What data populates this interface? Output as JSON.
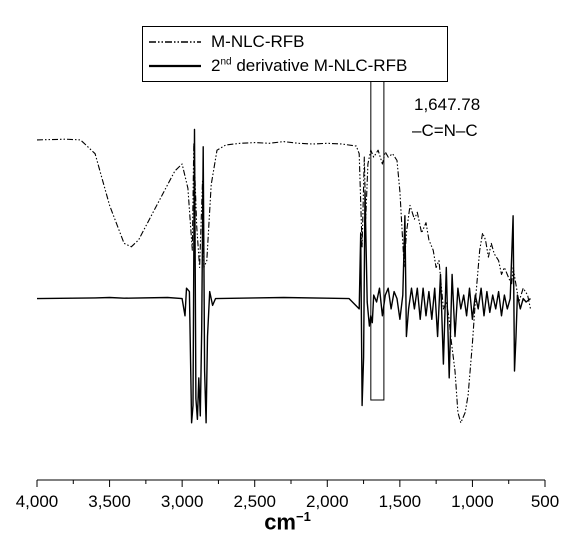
{
  "chart_data": {
    "type": "line",
    "x_reversed": true,
    "xlim": [
      4000,
      500
    ],
    "xticks": [
      4000,
      3500,
      3000,
      2500,
      2000,
      1500,
      1000,
      500
    ],
    "tick_labels": [
      "4,000",
      "3,500",
      "3,000",
      "2,500",
      "2,000",
      "1,500",
      "1,000",
      "500"
    ],
    "xlabel_base": "cm",
    "xlabel_sup": "−1",
    "y_axis_shown": false,
    "legend_position": "top-center",
    "series": [
      {
        "name": "M-NLC-RFB",
        "style": "dash-dot-dot",
        "points": [
          [
            4000,
            0.87
          ],
          [
            3800,
            0.872
          ],
          [
            3700,
            0.87
          ],
          [
            3600,
            0.83
          ],
          [
            3500,
            0.68
          ],
          [
            3400,
            0.57
          ],
          [
            3350,
            0.56
          ],
          [
            3300,
            0.58
          ],
          [
            3200,
            0.66
          ],
          [
            3100,
            0.74
          ],
          [
            3050,
            0.78
          ],
          [
            3000,
            0.8
          ],
          [
            2960,
            0.73
          ],
          [
            2930,
            0.55
          ],
          [
            2920,
            0.86
          ],
          [
            2900,
            0.62
          ],
          [
            2880,
            0.5
          ],
          [
            2860,
            0.75
          ],
          [
            2850,
            0.5
          ],
          [
            2830,
            0.52
          ],
          [
            2800,
            0.74
          ],
          [
            2760,
            0.84
          ],
          [
            2700,
            0.855
          ],
          [
            2600,
            0.86
          ],
          [
            2500,
            0.862
          ],
          [
            2400,
            0.86
          ],
          [
            2300,
            0.865
          ],
          [
            2200,
            0.86
          ],
          [
            2100,
            0.858
          ],
          [
            2000,
            0.86
          ],
          [
            1900,
            0.858
          ],
          [
            1800,
            0.852
          ],
          [
            1780,
            0.83
          ],
          [
            1760,
            0.56
          ],
          [
            1745,
            0.82
          ],
          [
            1735,
            0.64
          ],
          [
            1720,
            0.8
          ],
          [
            1700,
            0.84
          ],
          [
            1680,
            0.82
          ],
          [
            1650,
            0.84
          ],
          [
            1620,
            0.8
          ],
          [
            1600,
            0.835
          ],
          [
            1580,
            0.82
          ],
          [
            1550,
            0.83
          ],
          [
            1520,
            0.81
          ],
          [
            1500,
            0.72
          ],
          [
            1470,
            0.5
          ],
          [
            1455,
            0.6
          ],
          [
            1430,
            0.68
          ],
          [
            1400,
            0.64
          ],
          [
            1380,
            0.66
          ],
          [
            1350,
            0.6
          ],
          [
            1320,
            0.63
          ],
          [
            1300,
            0.58
          ],
          [
            1270,
            0.55
          ],
          [
            1250,
            0.5
          ],
          [
            1230,
            0.52
          ],
          [
            1200,
            0.38
          ],
          [
            1180,
            0.4
          ],
          [
            1160,
            0.35
          ],
          [
            1150,
            0.3
          ],
          [
            1120,
            0.2
          ],
          [
            1100,
            0.08
          ],
          [
            1080,
            0.05
          ],
          [
            1070,
            0.06
          ],
          [
            1050,
            0.08
          ],
          [
            1030,
            0.13
          ],
          [
            1000,
            0.28
          ],
          [
            980,
            0.4
          ],
          [
            950,
            0.55
          ],
          [
            930,
            0.6
          ],
          [
            910,
            0.58
          ],
          [
            890,
            0.53
          ],
          [
            870,
            0.57
          ],
          [
            850,
            0.54
          ],
          [
            820,
            0.52
          ],
          [
            800,
            0.48
          ],
          [
            780,
            0.5
          ],
          [
            750,
            0.47
          ],
          [
            730,
            0.45
          ],
          [
            720,
            0.5
          ],
          [
            700,
            0.45
          ],
          [
            680,
            0.4
          ],
          [
            650,
            0.44
          ],
          [
            620,
            0.42
          ],
          [
            600,
            0.38
          ]
        ]
      },
      {
        "name": "2nd derivative M-NLC-RFB",
        "legend_base": "2",
        "legend_sup": "nd",
        "legend_rest": " derivative M-NLC-RFB",
        "style": "solid",
        "points": [
          [
            4000,
            0.41
          ],
          [
            3600,
            0.412
          ],
          [
            3500,
            0.413
          ],
          [
            3400,
            0.411
          ],
          [
            3100,
            0.413
          ],
          [
            3000,
            0.41
          ],
          [
            2980,
            0.36
          ],
          [
            2970,
            0.44
          ],
          [
            2950,
            0.43
          ],
          [
            2935,
            0.05
          ],
          [
            2925,
            0.1
          ],
          [
            2915,
            0.9
          ],
          [
            2905,
            0.12
          ],
          [
            2895,
            0.06
          ],
          [
            2885,
            0.18
          ],
          [
            2875,
            0.07
          ],
          [
            2865,
            0.32
          ],
          [
            2855,
            0.85
          ],
          [
            2845,
            0.2
          ],
          [
            2835,
            0.05
          ],
          [
            2825,
            0.3
          ],
          [
            2810,
            0.43
          ],
          [
            2790,
            0.39
          ],
          [
            2770,
            0.41
          ],
          [
            2500,
            0.412
          ],
          [
            2300,
            0.413
          ],
          [
            2000,
            0.411
          ],
          [
            1850,
            0.41
          ],
          [
            1780,
            0.38
          ],
          [
            1770,
            0.6
          ],
          [
            1760,
            0.1
          ],
          [
            1750,
            0.24
          ],
          [
            1740,
            0.72
          ],
          [
            1725,
            0.4
          ],
          [
            1710,
            0.33
          ],
          [
            1700,
            0.36
          ],
          [
            1690,
            0.34
          ],
          [
            1680,
            0.42
          ],
          [
            1660,
            0.4
          ],
          [
            1640,
            0.44
          ],
          [
            1620,
            0.36
          ],
          [
            1600,
            0.42
          ],
          [
            1580,
            0.44
          ],
          [
            1560,
            0.38
          ],
          [
            1540,
            0.43
          ],
          [
            1520,
            0.41
          ],
          [
            1500,
            0.35
          ],
          [
            1480,
            0.42
          ],
          [
            1465,
            0.65
          ],
          [
            1455,
            0.3
          ],
          [
            1440,
            0.38
          ],
          [
            1420,
            0.44
          ],
          [
            1400,
            0.38
          ],
          [
            1380,
            0.44
          ],
          [
            1360,
            0.35
          ],
          [
            1340,
            0.44
          ],
          [
            1320,
            0.36
          ],
          [
            1300,
            0.43
          ],
          [
            1280,
            0.35
          ],
          [
            1260,
            0.44
          ],
          [
            1240,
            0.3
          ],
          [
            1220,
            0.48
          ],
          [
            1200,
            0.22
          ],
          [
            1180,
            0.5
          ],
          [
            1160,
            0.18
          ],
          [
            1140,
            0.48
          ],
          [
            1120,
            0.3
          ],
          [
            1100,
            0.44
          ],
          [
            1080,
            0.38
          ],
          [
            1060,
            0.42
          ],
          [
            1040,
            0.36
          ],
          [
            1020,
            0.44
          ],
          [
            1000,
            0.35
          ],
          [
            980,
            0.42
          ],
          [
            960,
            0.38
          ],
          [
            940,
            0.44
          ],
          [
            920,
            0.36
          ],
          [
            900,
            0.43
          ],
          [
            880,
            0.37
          ],
          [
            860,
            0.42
          ],
          [
            840,
            0.38
          ],
          [
            820,
            0.43
          ],
          [
            800,
            0.36
          ],
          [
            780,
            0.42
          ],
          [
            760,
            0.38
          ],
          [
            740,
            0.41
          ],
          [
            720,
            0.65
          ],
          [
            710,
            0.2
          ],
          [
            700,
            0.3
          ],
          [
            690,
            0.42
          ],
          [
            670,
            0.38
          ],
          [
            650,
            0.41
          ],
          [
            630,
            0.4
          ],
          [
            600,
            0.41
          ]
        ]
      }
    ],
    "annotation": {
      "line1": "1,647.78",
      "line2": "–C=N–C",
      "highlight_range_cm": [
        1700,
        1610
      ]
    }
  }
}
